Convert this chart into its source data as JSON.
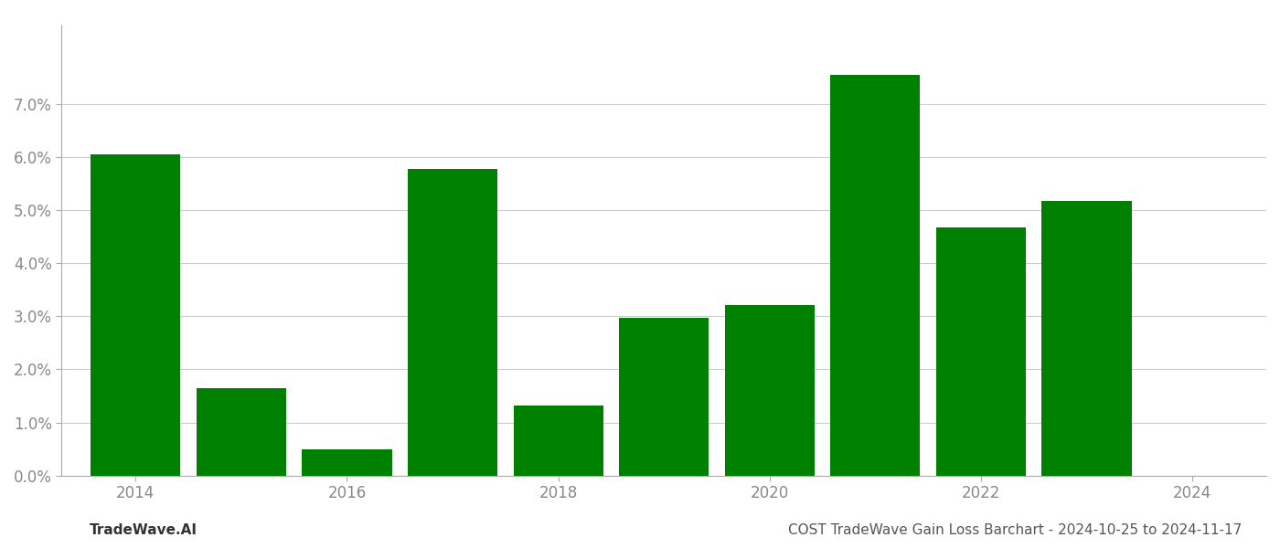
{
  "years": [
    2014,
    2015,
    2016,
    2017,
    2018,
    2019,
    2020,
    2021,
    2022,
    2023
  ],
  "values": [
    0.0605,
    0.0165,
    0.005,
    0.0578,
    0.0132,
    0.0297,
    0.0322,
    0.0755,
    0.0468,
    0.0518
  ],
  "bar_color": "#008000",
  "background_color": "#ffffff",
  "grid_color": "#cccccc",
  "title": "COST TradeWave Gain Loss Barchart - 2024-10-25 to 2024-11-17",
  "watermark": "TradeWave.AI",
  "ylim": [
    0,
    0.085
  ],
  "yticks": [
    0.0,
    0.01,
    0.02,
    0.03,
    0.04,
    0.05,
    0.06,
    0.07
  ],
  "xticks": [
    2014,
    2016,
    2018,
    2020,
    2022,
    2024
  ],
  "xlim_left": 2013.3,
  "xlim_right": 2024.7,
  "bar_width": 0.85,
  "tick_fontsize": 12,
  "title_fontsize": 11,
  "watermark_fontsize": 11
}
